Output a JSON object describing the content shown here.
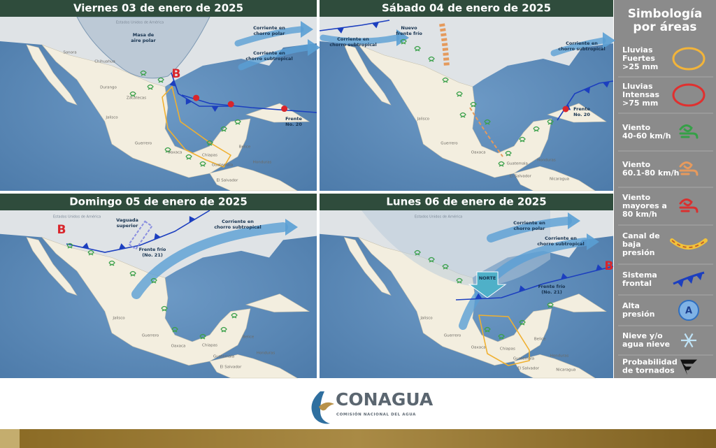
{
  "panels": [
    {
      "title": "Viernes 03 de enero de 2025",
      "labels": [
        [
          "Estados Unidos de América"
        ],
        [
          "Masa de",
          "aire polar"
        ],
        [
          "Corriente en",
          "chorro polar"
        ],
        [
          "Corriente en",
          "chorro subtropical"
        ],
        [
          "B"
        ],
        [
          "Frente",
          "No. 20"
        ]
      ],
      "places": [
        "Sonora",
        "Chihuahua",
        "Durango",
        "Zacatecas",
        "Jalisco",
        "Guerrero",
        "Oaxaca",
        "Chiapas",
        "Belice",
        "Guatemala",
        "Honduras",
        "El Salvador"
      ]
    },
    {
      "title": "Sábado 04 de enero de 2025",
      "labels": [
        [
          "Nuevo",
          "frente frío"
        ],
        [
          "Corriente en",
          "chorro subtropical"
        ],
        [
          "Corriente en",
          "chorro subtropical"
        ],
        [
          "Frente",
          "No. 20"
        ]
      ],
      "places": [
        "Jalisco",
        "Guerrero",
        "Oaxaca",
        "Guatemala",
        "Honduras",
        "El Salvador",
        "Nicaragua"
      ]
    },
    {
      "title": "Domingo 05 de enero de 2025",
      "labels": [
        [
          "Estados Unidos de América"
        ],
        [
          "B"
        ],
        [
          "Vaguada",
          "superior"
        ],
        [
          "Corriente en",
          "chorro subtropical"
        ],
        [
          "Frente frío",
          "(No. 21)"
        ]
      ],
      "places": [
        "Jalisco",
        "Guerrero",
        "Oaxaca",
        "Chiapas",
        "Belice",
        "Guatemala",
        "Honduras",
        "El Salvador"
      ]
    },
    {
      "title": "Lunes 06 de enero de 2025",
      "labels": [
        [
          "Estados Unidos de América"
        ],
        [
          "Corriente en",
          "chorro polar"
        ],
        [
          "Corriente en",
          "chorro subtropical"
        ],
        [
          "B"
        ],
        [
          "NORTE"
        ],
        [
          "Frente frío",
          "(No. 21)"
        ]
      ],
      "places": [
        "Jalisco",
        "Guerrero",
        "Oaxaca",
        "Chiapas",
        "Belice",
        "Guatemala",
        "Honduras",
        "El Salvador",
        "Nicaragua"
      ]
    }
  ],
  "legend": {
    "title": [
      "Simbología",
      "por áreas"
    ],
    "items": [
      [
        "Lluvias",
        "Fuertes",
        ">25 mm"
      ],
      [
        "Lluvias",
        "Intensas",
        ">75 mm"
      ],
      [
        "Viento",
        "40-60 km/h"
      ],
      [
        "Viento",
        "60.1-80 km/h"
      ],
      [
        "Viento",
        "mayores a",
        "80 km/h"
      ],
      [
        "Canal de",
        "baja",
        "presión"
      ],
      [
        "Sistema",
        "frontal"
      ],
      [
        "Alta",
        "presión"
      ],
      [
        "Nieve y/o",
        "agua nieve"
      ],
      [
        "Probabilidad",
        "de tornados"
      ]
    ],
    "high_symbol": "A"
  },
  "footer": {
    "logo": "CONAGUA",
    "subtitle": "COMISIÓN NACIONAL DEL AGUA"
  }
}
